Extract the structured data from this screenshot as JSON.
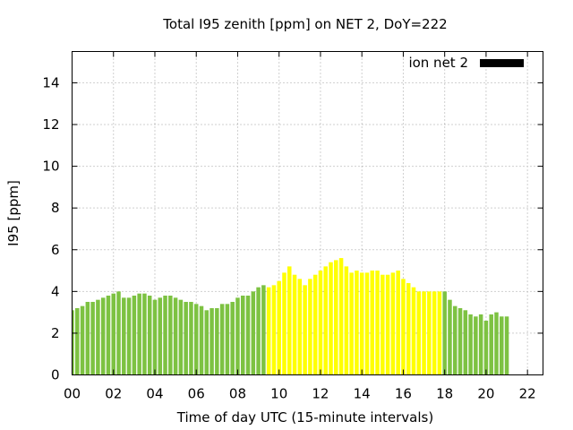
{
  "chart_data": {
    "type": "bar",
    "title": "Total I95 zenith [ppm] on NET 2, DoY=222",
    "xlabel": "Time of day UTC (15-minute intervals)",
    "ylabel": "I95 [ppm]",
    "xlim": [
      0,
      22.75
    ],
    "ylim": [
      0,
      15.5
    ],
    "x_ticks": [
      "00",
      "02",
      "04",
      "06",
      "08",
      "10",
      "12",
      "14",
      "16",
      "18",
      "20",
      "22"
    ],
    "y_ticks": [
      "0",
      "2",
      "4",
      "6",
      "8",
      "10",
      "12",
      "14"
    ],
    "grid": true,
    "legend": {
      "position": "top-right",
      "entries": [
        {
          "label": "ion net 2",
          "color": "#000000"
        }
      ]
    },
    "colors": {
      "night": "#7dc242",
      "day": "#ffff00"
    },
    "day_interval_hours": [
      9.5,
      18.0
    ],
    "bar_interval_hours": 0.25,
    "start_hour": 0,
    "values": [
      3.1,
      3.2,
      3.3,
      3.5,
      3.5,
      3.6,
      3.7,
      3.8,
      3.9,
      4.0,
      3.7,
      3.7,
      3.8,
      3.9,
      3.9,
      3.8,
      3.6,
      3.7,
      3.8,
      3.8,
      3.7,
      3.6,
      3.5,
      3.5,
      3.4,
      3.3,
      3.1,
      3.2,
      3.2,
      3.4,
      3.4,
      3.5,
      3.7,
      3.8,
      3.8,
      4.0,
      4.2,
      4.3,
      4.2,
      4.3,
      4.5,
      4.9,
      5.2,
      4.8,
      4.6,
      4.3,
      4.6,
      4.8,
      5.0,
      5.2,
      5.4,
      5.5,
      5.6,
      5.2,
      4.9,
      5.0,
      4.9,
      4.9,
      5.0,
      5.0,
      4.8,
      4.8,
      4.9,
      5.0,
      4.6,
      4.4,
      4.2,
      4.0,
      4.0,
      4.0,
      4.0,
      4.0,
      4.0,
      3.6,
      3.3,
      3.2,
      3.1,
      2.9,
      2.8,
      2.9,
      2.6,
      2.9,
      3.0,
      2.8,
      2.8
    ]
  }
}
